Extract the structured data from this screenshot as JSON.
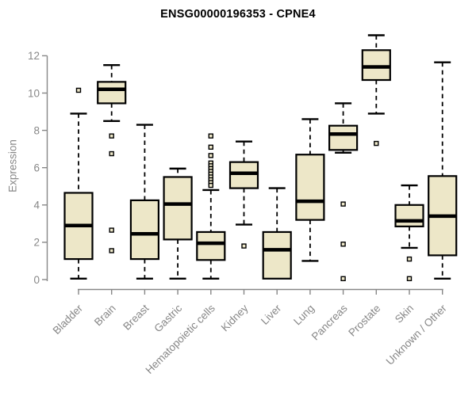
{
  "chart_data": {
    "type": "boxplot",
    "title": "ENSG00000196353 - CPNE4",
    "ylabel": "Expression",
    "xlabel": "",
    "ylim": [
      0,
      12
    ],
    "yticks": [
      0,
      2,
      4,
      6,
      8,
      10,
      12
    ],
    "grid": false,
    "legend": false,
    "categories": [
      "Bladder",
      "Brain",
      "Breast",
      "Gastric",
      "Hematopoietic cells",
      "Kidney",
      "Liver",
      "Lung",
      "Pancreas",
      "Prostate",
      "Skin",
      "Unknown / Other"
    ],
    "series": [
      {
        "name": "Bladder",
        "min": 0.05,
        "q1": 1.1,
        "median": 2.9,
        "q3": 4.65,
        "max": 8.9,
        "outliers": [
          10.15
        ]
      },
      {
        "name": "Brain",
        "min": 8.5,
        "q1": 9.45,
        "median": 10.2,
        "q3": 10.6,
        "max": 11.5,
        "outliers": [
          7.7,
          6.75,
          2.65,
          1.55
        ]
      },
      {
        "name": "Breast",
        "min": 0.05,
        "q1": 1.1,
        "median": 2.45,
        "q3": 4.25,
        "max": 8.3,
        "outliers": []
      },
      {
        "name": "Gastric",
        "min": 0.05,
        "q1": 2.15,
        "median": 4.05,
        "q3": 5.5,
        "max": 5.95,
        "outliers": []
      },
      {
        "name": "Hematopoietic cells",
        "min": 0.05,
        "q1": 1.05,
        "median": 1.95,
        "q3": 2.55,
        "max": 4.8,
        "outliers": [
          7.7,
          7.1,
          6.65,
          6.25,
          6.1,
          5.95,
          5.8,
          5.65,
          5.5,
          5.35,
          5.2,
          5.05
        ]
      },
      {
        "name": "Kidney",
        "min": 2.95,
        "q1": 4.9,
        "median": 5.7,
        "q3": 6.3,
        "max": 7.4,
        "outliers": [
          1.8
        ]
      },
      {
        "name": "Liver",
        "min": 0.05,
        "q1": 0.05,
        "median": 1.6,
        "q3": 2.55,
        "max": 4.9,
        "outliers": []
      },
      {
        "name": "Lung",
        "min": 1.0,
        "q1": 3.2,
        "median": 4.2,
        "q3": 6.7,
        "max": 8.6,
        "outliers": []
      },
      {
        "name": "Pancreas",
        "min": 6.8,
        "q1": 6.95,
        "median": 7.8,
        "q3": 8.25,
        "max": 9.45,
        "outliers": [
          4.05,
          1.9,
          0.05
        ]
      },
      {
        "name": "Prostate",
        "min": 8.9,
        "q1": 10.7,
        "median": 11.4,
        "q3": 12.3,
        "max": 13.1,
        "outliers": [
          7.3
        ]
      },
      {
        "name": "Skin",
        "min": 1.7,
        "q1": 2.85,
        "median": 3.15,
        "q3": 4.0,
        "max": 5.05,
        "outliers": [
          1.1,
          0.05
        ]
      },
      {
        "name": "Unknown / Other",
        "min": 0.05,
        "q1": 1.3,
        "median": 3.4,
        "q3": 5.55,
        "max": 11.65,
        "outliers": []
      }
    ],
    "colors": {
      "background": "#ffffff",
      "box_fill": "#ede7c8",
      "box_border": "#000000",
      "median": "#000000",
      "whisker": "#000000",
      "axis": "#878787",
      "tick_label": "#878787",
      "title": "#000000"
    }
  }
}
